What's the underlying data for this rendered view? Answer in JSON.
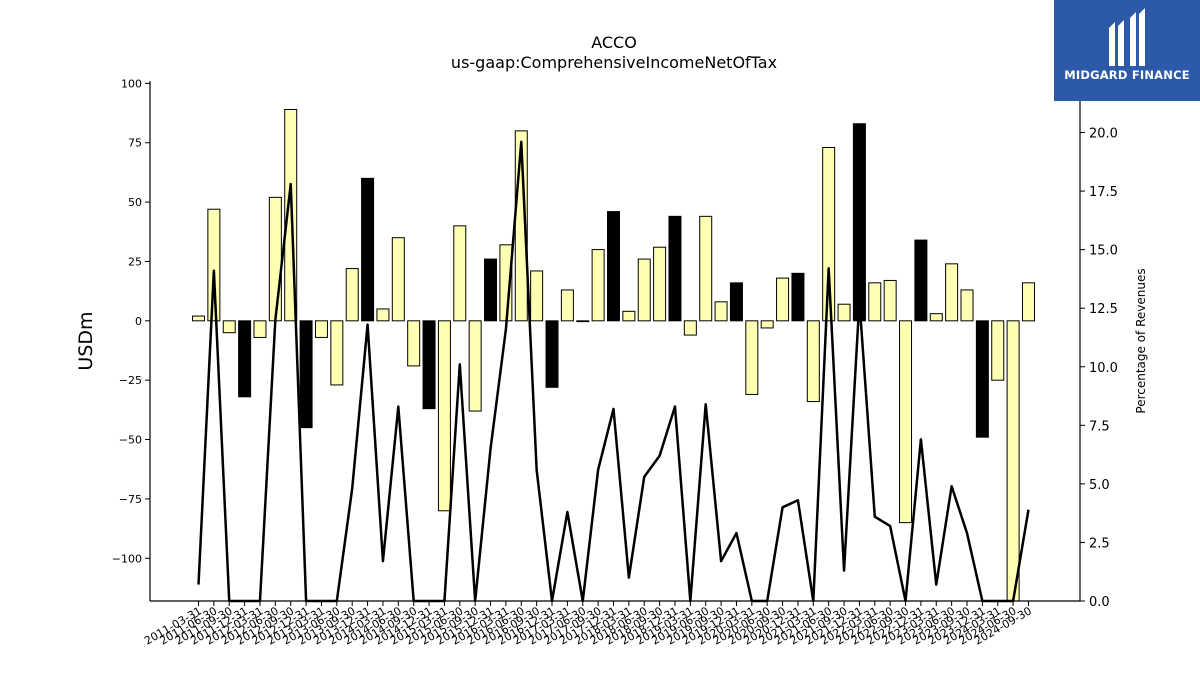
{
  "brand": {
    "name": "MIDGARD FINANCE",
    "bg_color": "#2d5aa8"
  },
  "chart_data": {
    "type": "bar",
    "title": "ACCO",
    "subtitle": "us-gaap:ComprehensiveIncomeNetOfTax",
    "ylabel": "USDm",
    "y2label": "Percentage of Revenues",
    "ylim": [
      -118,
      101
    ],
    "y2lim": [
      0,
      22.2
    ],
    "yticks": [
      100,
      75,
      50,
      25,
      0,
      -25,
      -50,
      -75,
      -100
    ],
    "y2ticks": [
      0.0,
      2.5,
      5.0,
      7.5,
      10.0,
      12.5,
      15.0,
      17.5,
      20.0
    ],
    "colors": {
      "positive_bar": "#ffffb3",
      "negative_bar": "#000000",
      "line": "#000000"
    },
    "categories": [
      "2011-03-31",
      "2011-06-30",
      "2011-09-30",
      "2011-12-31",
      "2012-03-31",
      "2012-06-30",
      "2012-09-30",
      "2012-12-31",
      "2013-03-31",
      "2013-06-30",
      "2013-09-30",
      "2013-12-31",
      "2014-03-31",
      "2014-06-30",
      "2014-09-30",
      "2014-12-31",
      "2015-03-31",
      "2015-06-30",
      "2015-09-30",
      "2015-12-31",
      "2016-03-31",
      "2016-06-30",
      "2016-09-30",
      "2016-12-31",
      "2017-03-31",
      "2017-06-30",
      "2017-09-30",
      "2017-12-31",
      "2018-03-31",
      "2018-06-30",
      "2018-09-30",
      "2018-12-31",
      "2019-03-31",
      "2019-06-30",
      "2019-09-30",
      "2019-12-31",
      "2020-03-31",
      "2020-06-30",
      "2020-09-30",
      "2020-12-31",
      "2021-03-31",
      "2021-06-30",
      "2021-09-30",
      "2021-12-31",
      "2022-03-31",
      "2022-06-30",
      "2022-09-30",
      "2022-12-31",
      "2023-03-31",
      "2023-06-30",
      "2023-09-30",
      "2023-12-31",
      "2024-03-31",
      "2024-06-30",
      "2024-09-30"
    ],
    "series": [
      {
        "type": "bar",
        "values": [
          2,
          47,
          -5,
          -32,
          -7,
          52,
          89,
          -45,
          -7,
          -27,
          22,
          60,
          5,
          35,
          -19,
          -37,
          -80,
          40,
          -38,
          26,
          32,
          80,
          21,
          -28,
          13,
          0,
          30,
          46,
          4,
          26,
          31,
          44,
          -6,
          44,
          8,
          16,
          -31,
          -3,
          18,
          20,
          -34,
          73,
          7,
          83,
          16,
          17,
          -85,
          34,
          3,
          24,
          13,
          -49,
          -25,
          -118,
          16
        ],
        "bar_color": [
          "y",
          "y",
          "y",
          "k",
          "y",
          "y",
          "y",
          "k",
          "y",
          "y",
          "y",
          "k",
          "y",
          "y",
          "y",
          "k",
          "y",
          "y",
          "y",
          "k",
          "y",
          "y",
          "y",
          "k",
          "y",
          "y",
          "y",
          "k",
          "y",
          "y",
          "y",
          "k",
          "y",
          "y",
          "y",
          "k",
          "y",
          "y",
          "y",
          "k",
          "y",
          "y",
          "y",
          "k",
          "y",
          "y",
          "y",
          "k",
          "y",
          "y",
          "y",
          "k",
          "y",
          "y",
          "y"
        ]
      },
      {
        "type": "line",
        "axis": "right",
        "values": [
          0.7,
          14.1,
          0,
          0,
          0,
          12.0,
          17.8,
          0,
          0,
          0,
          4.8,
          11.8,
          1.7,
          8.3,
          0,
          0,
          0,
          10.1,
          0,
          6.5,
          11.6,
          19.6,
          5.6,
          0,
          3.8,
          0,
          5.6,
          8.2,
          1.0,
          5.3,
          6.2,
          8.3,
          0,
          8.4,
          1.7,
          2.9,
          0,
          0,
          4.0,
          4.3,
          0,
          14.2,
          1.3,
          12.8,
          3.6,
          3.2,
          0,
          6.9,
          0.7,
          4.9,
          2.9,
          0,
          0,
          0,
          3.9
        ]
      }
    ]
  }
}
